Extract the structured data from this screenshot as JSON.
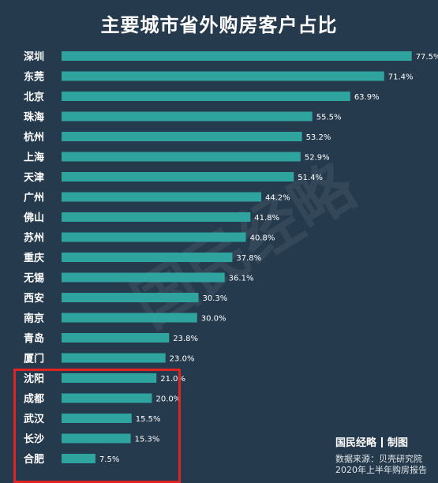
{
  "brand": {
    "name": "国民经略",
    "suffix": "制图"
  },
  "watermark": "国民经略",
  "source": {
    "line1": "数据来源：贝壳研究院",
    "line2": "2020年上半年购房报告"
  },
  "colors": {
    "background": "#253a4d",
    "bar": "#2fa39d",
    "highlight": "#e02424",
    "label": "#ffffff"
  },
  "chart_data": {
    "type": "bar",
    "orientation": "horizontal",
    "title": "主要城市省外购房客户占比",
    "categories": [
      "深圳",
      "东莞",
      "北京",
      "珠海",
      "杭州",
      "上海",
      "天津",
      "广州",
      "佛山",
      "苏州",
      "重庆",
      "无锡",
      "西安",
      "南京",
      "青岛",
      "厦门",
      "沈阳",
      "成都",
      "武汉",
      "长沙",
      "合肥"
    ],
    "values": [
      77.5,
      71.4,
      63.9,
      55.5,
      53.2,
      52.9,
      51.4,
      44.2,
      41.8,
      40.8,
      37.8,
      36.1,
      30.3,
      30.0,
      23.8,
      23.0,
      21.0,
      20.0,
      15.5,
      15.3,
      7.5
    ],
    "value_labels": [
      "77.5%",
      "71.4%",
      "63.9%",
      "55.5%",
      "53.2%",
      "52.9%",
      "51.4%",
      "44.2%",
      "41.8%",
      "40.8%",
      "37.8%",
      "36.1%",
      "30.3%",
      "30.0%",
      "23.8%",
      "23.0%",
      "21.0%",
      "20.0%",
      "15.5%",
      "15.3%",
      "7.5%"
    ],
    "highlighted": [
      "沈阳",
      "成都",
      "武汉",
      "长沙",
      "合肥"
    ],
    "xlim": [
      0,
      80
    ],
    "grid": false,
    "legend": "none"
  }
}
